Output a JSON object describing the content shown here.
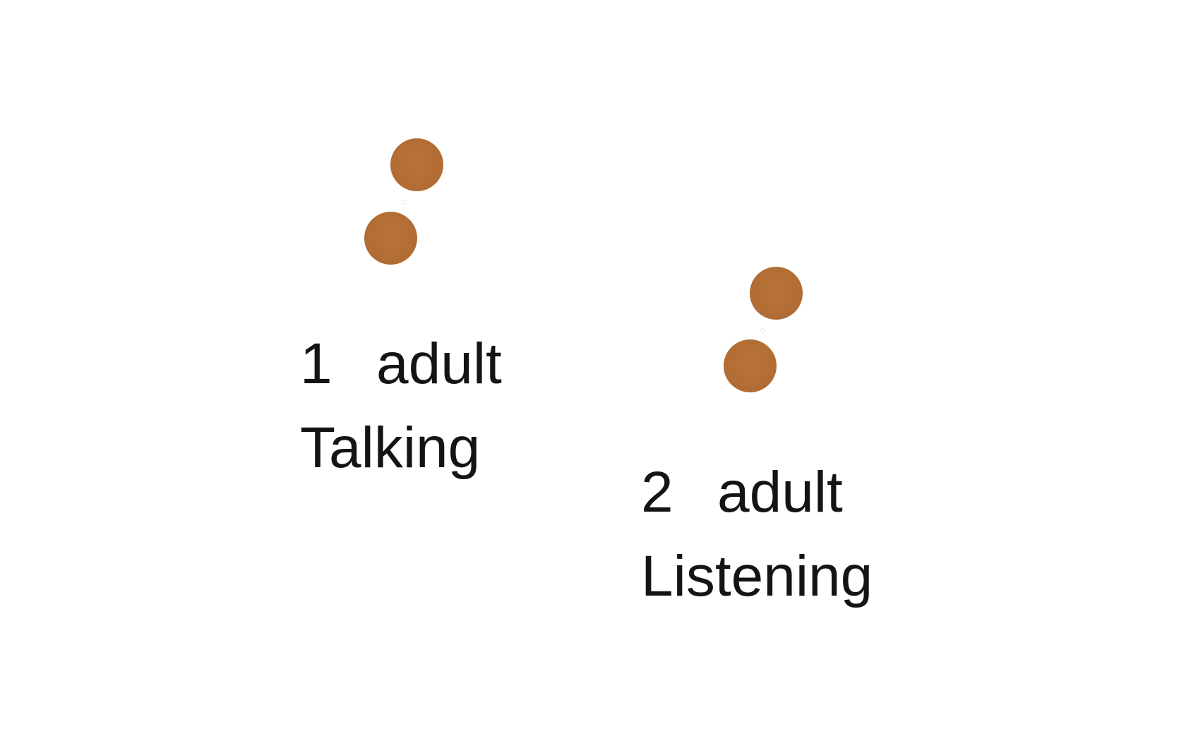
{
  "colors": {
    "dot": "#b06c34",
    "dot_highlight": "#b87438",
    "text": "#141414",
    "background": "#ffffff"
  },
  "figures": [
    {
      "number": "1",
      "role": "adult",
      "activity": "Talking"
    },
    {
      "number": "2",
      "role": "adult",
      "activity": "Listening"
    }
  ]
}
